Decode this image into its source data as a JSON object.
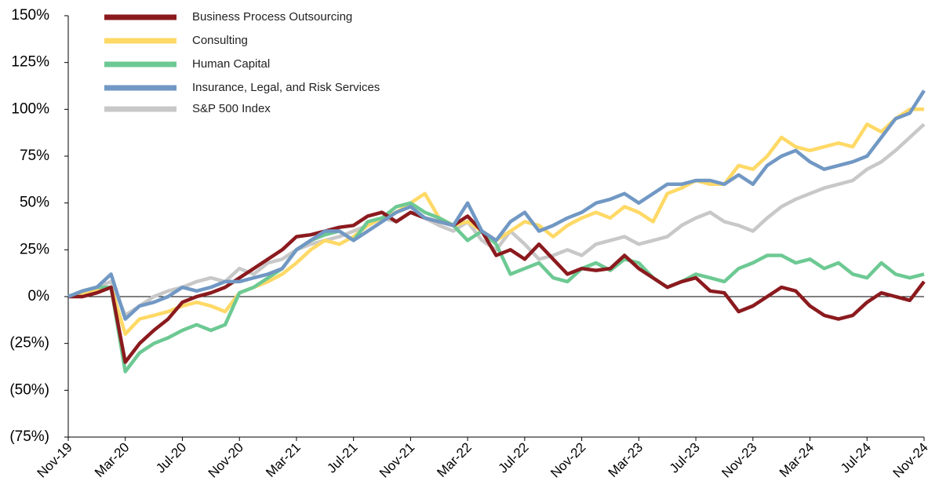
{
  "chart_data": {
    "type": "line",
    "categories": [
      "Nov-19",
      null,
      null,
      null,
      "Mar-20",
      null,
      null,
      null,
      "Jul-20",
      null,
      null,
      null,
      "Nov-20",
      null,
      null,
      null,
      "Mar-21",
      null,
      null,
      null,
      "Jul-21",
      null,
      null,
      null,
      "Nov-21",
      null,
      null,
      null,
      "Mar-22",
      null,
      null,
      null,
      "Jul-22",
      null,
      null,
      null,
      "Nov-22",
      null,
      null,
      null,
      "Mar-23",
      null,
      null,
      null,
      "Jul-23",
      null,
      null,
      null,
      "Nov-23",
      null,
      null,
      null,
      "Mar-24",
      null,
      null,
      null,
      "Jul-24",
      null,
      null,
      null,
      "Nov-24"
    ],
    "series": [
      {
        "name": "Business Process Outsourcing",
        "color": "#8b1a1e",
        "values": [
          0,
          0,
          2,
          5,
          -35,
          -25,
          -18,
          -12,
          -3,
          0,
          2,
          5,
          10,
          15,
          20,
          25,
          32,
          33,
          35,
          37,
          38,
          43,
          45,
          40,
          45,
          42,
          40,
          38,
          43,
          35,
          22,
          25,
          20,
          28,
          20,
          12,
          15,
          14,
          15,
          22,
          15,
          10,
          5,
          8,
          10,
          3,
          2,
          -8,
          -5,
          0,
          5,
          3,
          -5,
          -10,
          -12,
          -10,
          -3,
          2,
          0,
          -2,
          8
        ]
      },
      {
        "name": "Consulting",
        "color": "#ffd966",
        "values": [
          0,
          2,
          3,
          5,
          -20,
          -12,
          -10,
          -8,
          -5,
          -3,
          -5,
          -8,
          2,
          5,
          8,
          12,
          18,
          25,
          30,
          28,
          32,
          38,
          42,
          45,
          50,
          55,
          42,
          38,
          40,
          35,
          30,
          35,
          40,
          38,
          32,
          38,
          42,
          45,
          42,
          48,
          45,
          40,
          55,
          58,
          62,
          60,
          60,
          70,
          68,
          75,
          85,
          80,
          78,
          80,
          82,
          80,
          92,
          88,
          95,
          100,
          100
        ]
      },
      {
        "name": "Human Capital",
        "color": "#6dc993",
        "values": [
          0,
          3,
          5,
          5,
          -40,
          -30,
          -25,
          -22,
          -18,
          -15,
          -18,
          -15,
          2,
          5,
          10,
          15,
          25,
          30,
          33,
          35,
          30,
          40,
          42,
          48,
          50,
          45,
          42,
          38,
          30,
          35,
          28,
          12,
          15,
          18,
          10,
          8,
          15,
          18,
          14,
          20,
          18,
          10,
          5,
          8,
          12,
          10,
          8,
          15,
          18,
          22,
          22,
          18,
          20,
          15,
          18,
          12,
          10,
          18,
          12,
          10,
          12
        ]
      },
      {
        "name": "Insurance, Legal, and Risk Services",
        "color": "#7198c4",
        "values": [
          0,
          3,
          5,
          12,
          -12,
          -5,
          -3,
          0,
          5,
          3,
          5,
          8,
          8,
          10,
          12,
          15,
          25,
          30,
          35,
          35,
          30,
          35,
          40,
          45,
          48,
          42,
          40,
          38,
          50,
          35,
          30,
          40,
          45,
          35,
          38,
          42,
          45,
          50,
          52,
          55,
          50,
          55,
          60,
          60,
          62,
          62,
          60,
          65,
          60,
          70,
          75,
          78,
          72,
          68,
          70,
          72,
          75,
          85,
          95,
          98,
          110
        ]
      },
      {
        "name": "S&P 500 Index",
        "color": "#c8c8c8",
        "values": [
          0,
          2,
          5,
          8,
          -10,
          -5,
          0,
          3,
          5,
          8,
          10,
          8,
          15,
          12,
          18,
          20,
          25,
          28,
          30,
          32,
          35,
          38,
          42,
          40,
          45,
          42,
          38,
          35,
          40,
          30,
          25,
          35,
          28,
          20,
          22,
          25,
          22,
          28,
          30,
          32,
          28,
          30,
          32,
          38,
          42,
          45,
          40,
          38,
          35,
          42,
          48,
          52,
          55,
          58,
          60,
          62,
          68,
          72,
          78,
          85,
          92
        ]
      }
    ],
    "ylim": [
      -75,
      150
    ],
    "yticks": [
      {
        "value": -75,
        "label": "(75%)"
      },
      {
        "value": -50,
        "label": "(50%)"
      },
      {
        "value": -25,
        "label": "(25%)"
      },
      {
        "value": 0,
        "label": "0%"
      },
      {
        "value": 25,
        "label": "25%"
      },
      {
        "value": 50,
        "label": "50%"
      },
      {
        "value": 75,
        "label": "75%"
      },
      {
        "value": 100,
        "label": "100%"
      },
      {
        "value": 125,
        "label": "125%"
      },
      {
        "value": 150,
        "label": "150%"
      }
    ],
    "legend": "top-left"
  }
}
